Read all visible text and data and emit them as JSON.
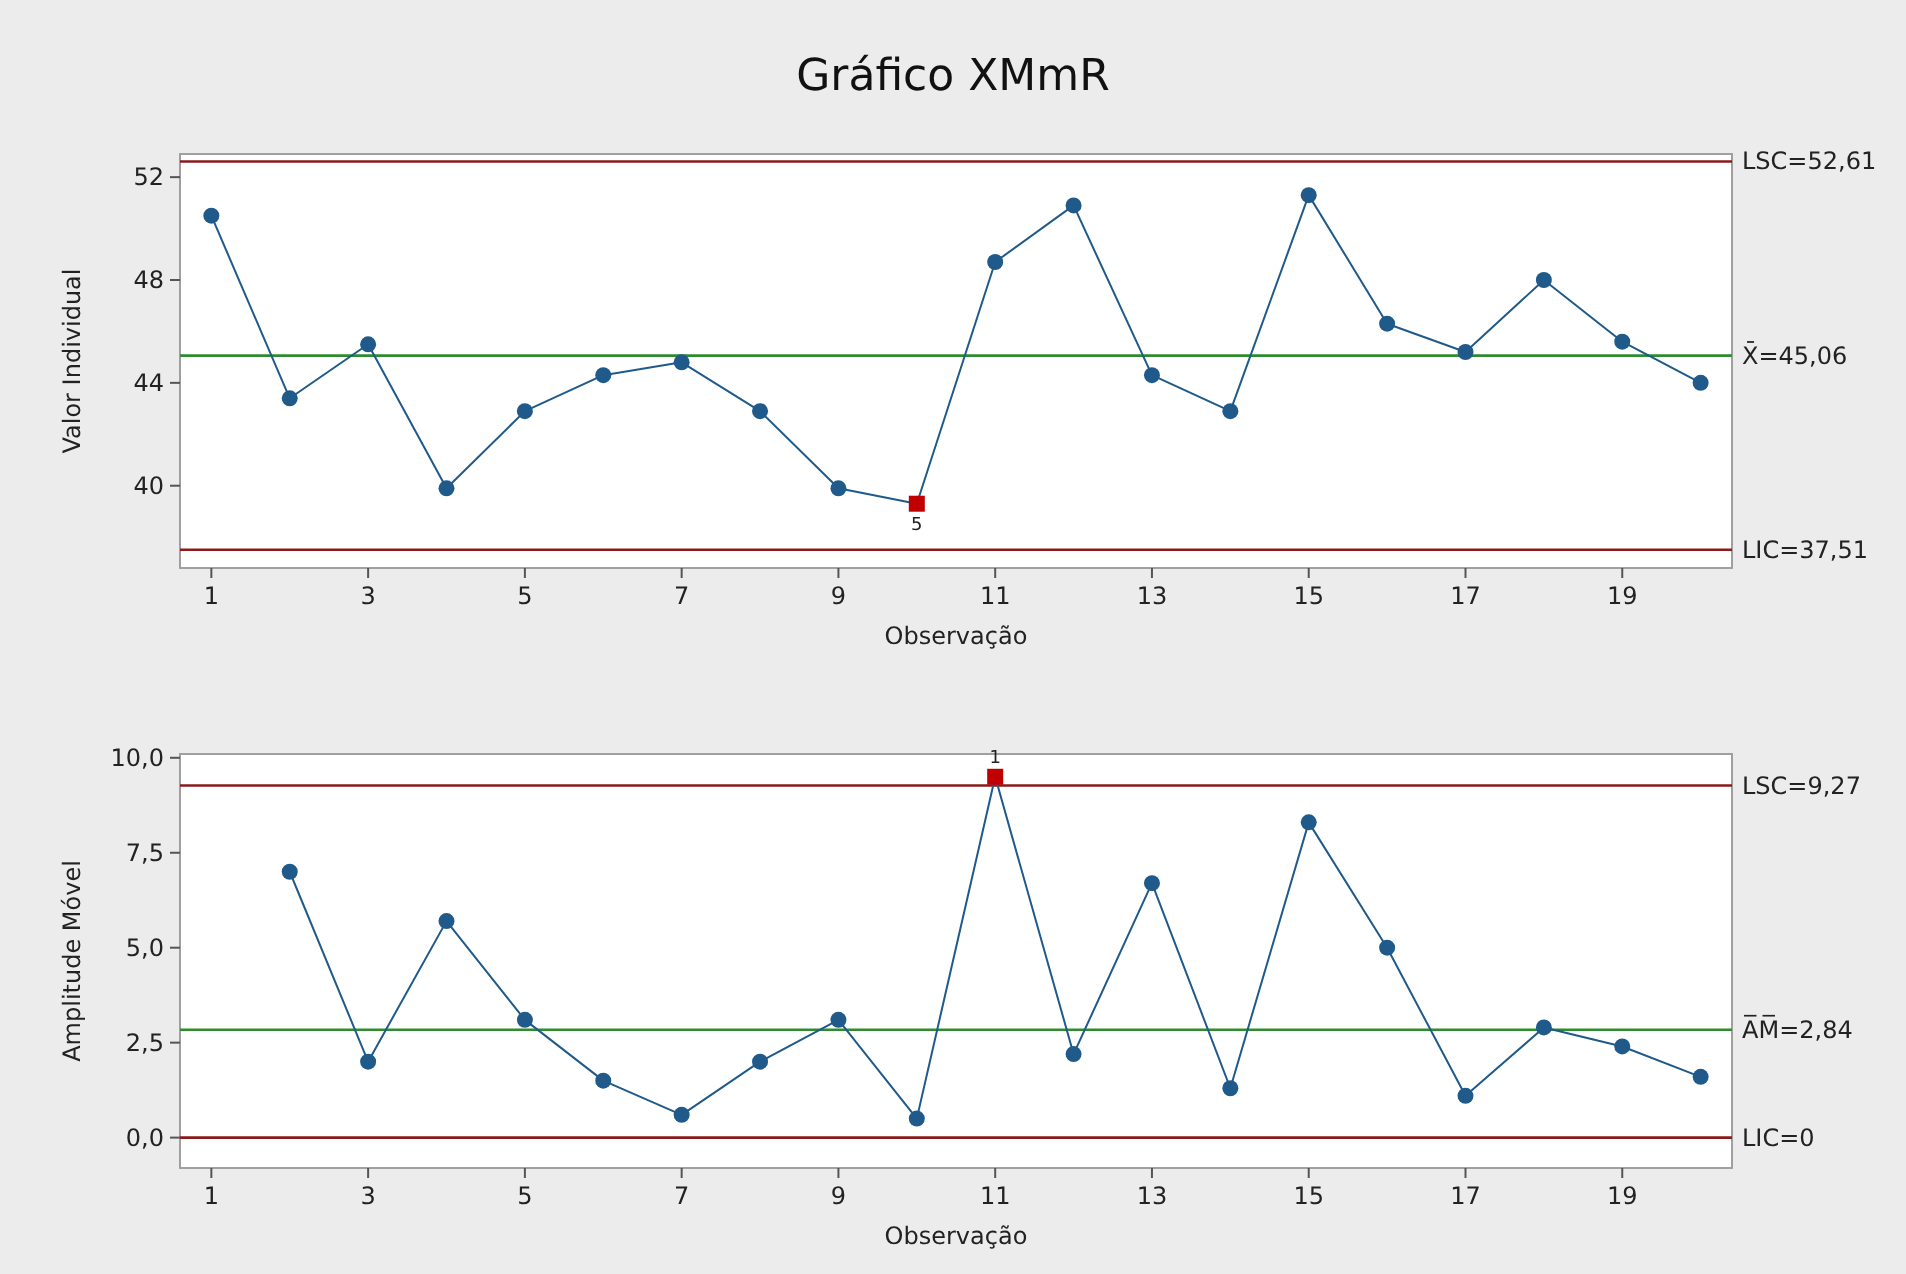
{
  "chart_data": [
    {
      "type": "line",
      "title": "Gráfico XMmR",
      "xlabel": "Observação",
      "ylabel": "Valor Individual",
      "x": [
        1,
        2,
        3,
        4,
        5,
        6,
        7,
        8,
        9,
        10,
        11,
        12,
        13,
        14,
        15,
        16,
        17,
        18,
        19,
        20
      ],
      "xlim": [
        0.6,
        20.4
      ],
      "xticks": [
        1,
        3,
        5,
        7,
        9,
        11,
        13,
        15,
        17,
        19
      ],
      "ylim": [
        36.8,
        52.9
      ],
      "yticks": [
        40,
        44,
        48,
        52
      ],
      "marker": "circle",
      "series": [
        {
          "color": "#1f5a8a",
          "colors": [
            "#1f5a8a",
            "#1f5a8a",
            "#1f5a8a",
            "#1f5a8a",
            "#1f5a8a",
            "#1f5a8a",
            "#1f5a8a",
            "#1f5a8a",
            "#1f5a8a",
            "#c00000",
            "#1f5a8a",
            "#1f5a8a",
            "#1f5a8a",
            "#1f5a8a",
            "#1f5a8a",
            "#1f5a8a",
            "#1f5a8a",
            "#1f5a8a",
            "#1f5a8a",
            "#1f5a8a"
          ],
          "values": [
            50.5,
            43.4,
            45.5,
            39.9,
            42.9,
            44.3,
            44.8,
            42.9,
            39.9,
            39.3,
            48.7,
            50.9,
            44.3,
            42.9,
            51.3,
            46.3,
            45.2,
            48.0,
            45.6,
            44.0
          ]
        }
      ],
      "ref_lines": [
        {
          "axis": "y",
          "value": 52.61,
          "label": "LSC=52,61",
          "color": "#8b1a1a"
        },
        {
          "axis": "y",
          "value": 45.06,
          "label": "X̄=45,06",
          "color": "#2e8b2e"
        },
        {
          "axis": "y",
          "value": 37.51,
          "label": "LIC=37,51",
          "color": "#8b1a1a"
        }
      ],
      "annotations": [
        {
          "text": "5",
          "x": 10,
          "y": 39.3
        }
      ]
    },
    {
      "type": "line",
      "xlabel": "Observação",
      "ylabel": "Amplitude Móvel",
      "xlim": [
        0.6,
        20.4
      ],
      "xticks": [
        1,
        3,
        5,
        7,
        9,
        11,
        13,
        15,
        17,
        19
      ],
      "ylim": [
        -0.8,
        10.1
      ],
      "yticks": [
        {
          "value": 0,
          "label": "0,0"
        },
        {
          "value": 2.5,
          "label": "2,5"
        },
        {
          "value": 5,
          "label": "5,0"
        },
        {
          "value": 7.5,
          "label": "7,5"
        },
        {
          "value": 10,
          "label": "10,0"
        }
      ],
      "marker": "circle",
      "series": [
        {
          "color": "#1f5a8a",
          "x": [
            2,
            3,
            4,
            5,
            6,
            7,
            8,
            9,
            10,
            11,
            12,
            13,
            14,
            15,
            16,
            17,
            18,
            19,
            20
          ],
          "colors": [
            "#1f5a8a",
            "#1f5a8a",
            "#1f5a8a",
            "#1f5a8a",
            "#1f5a8a",
            "#1f5a8a",
            "#1f5a8a",
            "#1f5a8a",
            "#1f5a8a",
            "#c00000",
            "#1f5a8a",
            "#1f5a8a",
            "#1f5a8a",
            "#1f5a8a",
            "#1f5a8a",
            "#1f5a8a",
            "#1f5a8a",
            "#1f5a8a",
            "#1f5a8a"
          ],
          "values": [
            7.0,
            2.0,
            5.7,
            3.1,
            1.5,
            0.6,
            2.0,
            3.1,
            0.5,
            9.5,
            2.2,
            6.7,
            1.3,
            8.3,
            5.0,
            1.1,
            2.9,
            2.4,
            1.6
          ]
        }
      ],
      "ref_lines": [
        {
          "axis": "y",
          "value": 9.27,
          "label": "LSC=9,27",
          "color": "#8b1a1a"
        },
        {
          "axis": "y",
          "value": 2.84,
          "label": "A̅M̅=2,84",
          "color": "#2e8b2e"
        },
        {
          "axis": "y",
          "value": 0,
          "label": "LIC=0",
          "color": "#8b1a1a"
        }
      ],
      "annotations": [
        {
          "text": "1",
          "x": 11,
          "y": 9.5
        }
      ]
    }
  ]
}
